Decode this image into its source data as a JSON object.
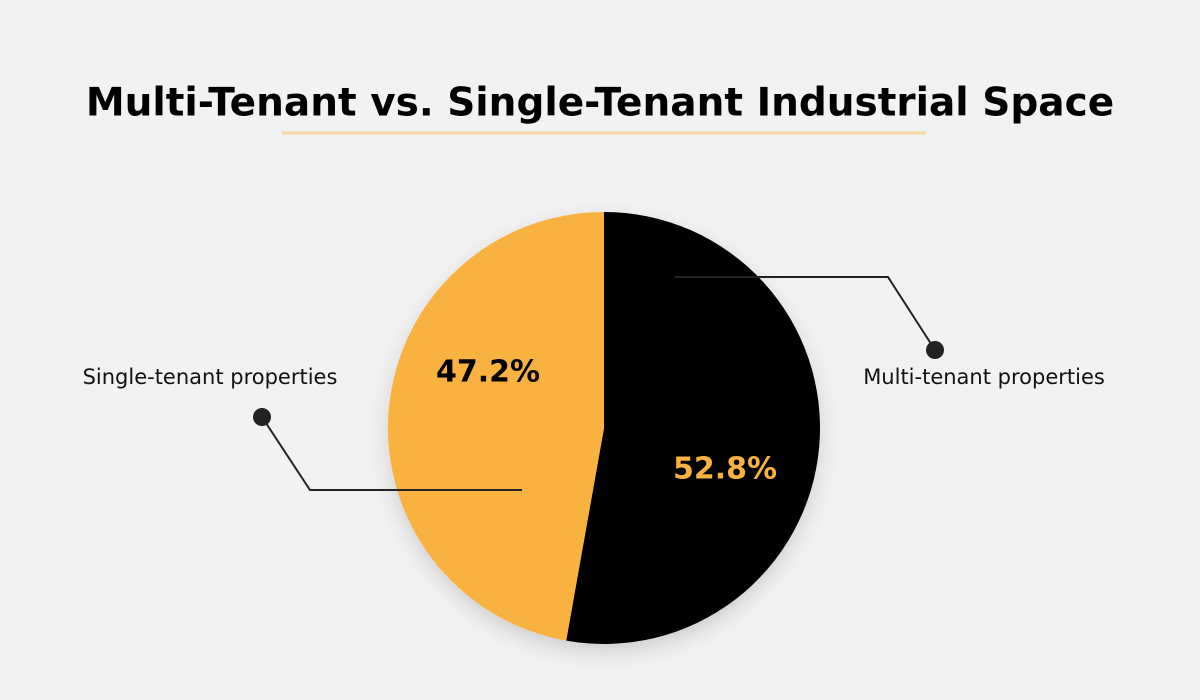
{
  "chart_data": {
    "type": "pie",
    "title": "Multi-Tenant vs. Single-Tenant Industrial Space",
    "categories": [
      "Multi-tenant properties",
      "Single-tenant properties"
    ],
    "values": [
      52.8,
      47.2
    ],
    "value_labels": [
      "52.8%",
      "47.2%"
    ],
    "colors": [
      "#000000",
      "#f9b13f"
    ]
  }
}
